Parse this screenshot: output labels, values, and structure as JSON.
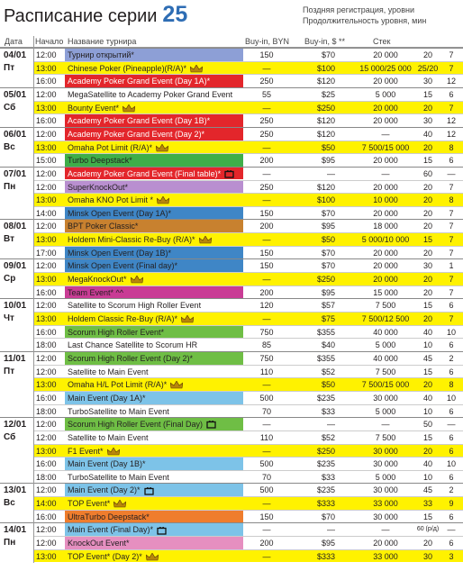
{
  "header": {
    "title": "Расписание серии",
    "number": "25",
    "note_late": "Поздняя регистрация, уровни",
    "note_duration": "Продолжительность уровня, мин"
  },
  "table": {
    "columns": [
      "Дата",
      "Начало",
      "Название турнира",
      "Buy-in, BYN",
      "Buy-in, $ **",
      "Стек"
    ],
    "days": [
      {
        "date": "04/01",
        "weekday": "Пт",
        "events": [
          {
            "time": "12:00",
            "name": "Турнир открытий*",
            "byn": "150",
            "usd": "$70",
            "stack": "20 000",
            "late": "20",
            "dur": "7",
            "color": "#8d9fd6"
          },
          {
            "time": "13:00",
            "name": "Chinese Poker (Pineapple)(R/A)*",
            "icon": "crown",
            "byn": "—",
            "usd": "$100",
            "stack": "15 000/25 000",
            "late": "25/20",
            "dur": "7",
            "color": "#fff200",
            "highlight": true
          },
          {
            "time": "16:00",
            "name": "Academy Poker Grand Event (Day 1A)*",
            "byn": "250",
            "usd": "$120",
            "stack": "20 000",
            "late": "30",
            "dur": "12",
            "color": "#e3262b",
            "text": "#fff"
          }
        ]
      },
      {
        "date": "05/01",
        "weekday": "Сб",
        "events": [
          {
            "time": "12:00",
            "name": "MegaSatellite to Academy Poker Grand Event",
            "byn": "55",
            "usd": "$25",
            "stack": "5 000",
            "late": "15",
            "dur": "6"
          },
          {
            "time": "13:00",
            "name": "Bounty Event*",
            "icon": "crown",
            "byn": "—",
            "usd": "$250",
            "stack": "20 000",
            "late": "20",
            "dur": "7",
            "color": "#fff200",
            "highlight": true
          },
          {
            "time": "16:00",
            "name": "Academy Poker Grand Event (Day 1B)*",
            "byn": "250",
            "usd": "$120",
            "stack": "20 000",
            "late": "30",
            "dur": "12",
            "color": "#e3262b",
            "text": "#fff"
          }
        ]
      },
      {
        "date": "06/01",
        "weekday": "Вс",
        "events": [
          {
            "time": "12:00",
            "name": "Academy Poker Grand Event (Day 2)*",
            "byn": "250",
            "usd": "$120",
            "stack": "—",
            "late": "40",
            "dur": "12",
            "color": "#e3262b",
            "text": "#fff"
          },
          {
            "time": "13:00",
            "name": "Omaha Pot Limit (R/A)*",
            "icon": "crown",
            "byn": "—",
            "usd": "$50",
            "stack": "7 500/15 000",
            "late": "20",
            "dur": "8",
            "color": "#fff200",
            "highlight": true
          },
          {
            "time": "15:00",
            "name": "Turbo Deepstack*",
            "byn": "200",
            "usd": "$95",
            "stack": "20 000",
            "late": "15",
            "dur": "6",
            "color": "#3fae49"
          }
        ]
      },
      {
        "date": "07/01",
        "weekday": "Пн",
        "events": [
          {
            "time": "12:00",
            "name": "Academy Poker Grand Event (Final table)*",
            "icon": "tv",
            "byn": "—",
            "usd": "—",
            "stack": "—",
            "late": "60",
            "dur": "—",
            "color": "#e3262b",
            "text": "#fff"
          },
          {
            "time": "12:00",
            "name": "SuperKnockOut*",
            "byn": "250",
            "usd": "$120",
            "stack": "20 000",
            "late": "20",
            "dur": "7",
            "color": "#b98fd0"
          },
          {
            "time": "13:00",
            "name": "Omaha KNO Pot Limit *",
            "icon": "crown",
            "byn": "—",
            "usd": "$100",
            "stack": "10 000",
            "late": "20",
            "dur": "8",
            "color": "#fff200",
            "highlight": true
          },
          {
            "time": "14:00",
            "name": "Minsk Open Event (Day 1A)*",
            "byn": "150",
            "usd": "$70",
            "stack": "20 000",
            "late": "20",
            "dur": "7",
            "color": "#3f86c6"
          }
        ]
      },
      {
        "date": "08/01",
        "weekday": "Вт",
        "events": [
          {
            "time": "12:00",
            "name": "BPT Poker Classic*",
            "byn": "200",
            "usd": "$95",
            "stack": "18 000",
            "late": "20",
            "dur": "7",
            "color": "#c8812f"
          },
          {
            "time": "13:00",
            "name": "Holdem Mini-Classic Re-Buy (R/A)*",
            "icon": "crown",
            "byn": "—",
            "usd": "$50",
            "stack": "5 000/10 000",
            "late": "15",
            "dur": "7",
            "color": "#fff200",
            "highlight": true
          },
          {
            "time": "17:00",
            "name": "Minsk Open Event (Day 1B)*",
            "byn": "150",
            "usd": "$70",
            "stack": "20 000",
            "late": "20",
            "dur": "7",
            "color": "#3f86c6"
          }
        ]
      },
      {
        "date": "09/01",
        "weekday": "Ср",
        "events": [
          {
            "time": "12:00",
            "name": "Minsk Open Event (Final day)*",
            "byn": "150",
            "usd": "$70",
            "stack": "20 000",
            "late": "30",
            "dur": "1",
            "color": "#3f86c6"
          },
          {
            "time": "13:00",
            "name": "MegaKnockOut*",
            "icon": "crown",
            "byn": "—",
            "usd": "$250",
            "stack": "20 000",
            "late": "20",
            "dur": "7",
            "color": "#fff200",
            "highlight": true
          },
          {
            "time": "16:00",
            "name": "Team Event* ^^",
            "byn": "200",
            "usd": "$95",
            "stack": "15 000",
            "late": "20",
            "dur": "7",
            "color": "#c93c95"
          }
        ]
      },
      {
        "date": "10/01",
        "weekday": "Чт",
        "events": [
          {
            "time": "12:00",
            "name": "Satellite to Scorum High Roller Event",
            "byn": "120",
            "usd": "$57",
            "stack": "7 500",
            "late": "15",
            "dur": "6"
          },
          {
            "time": "13:00",
            "name": "Holdem Classic Re-Buy (R/A)*",
            "icon": "crown",
            "byn": "—",
            "usd": "$75",
            "stack": "7 500/12 500",
            "late": "20",
            "dur": "7",
            "color": "#fff200",
            "highlight": true
          },
          {
            "time": "16:00",
            "name": "Scorum High Roller Event*",
            "byn": "750",
            "usd": "$355",
            "stack": "40 000",
            "late": "40",
            "dur": "10",
            "color": "#6fbe45"
          },
          {
            "time": "18:00",
            "name": "Last Chance Satellite to Scorum HR",
            "byn": "85",
            "usd": "$40",
            "stack": "5 000",
            "late": "10",
            "dur": "6"
          }
        ]
      },
      {
        "date": "11/01",
        "weekday": "Пт",
        "events": [
          {
            "time": "12:00",
            "name": "Scorum High Roller Event (Day 2)*",
            "byn": "750",
            "usd": "$355",
            "stack": "40 000",
            "late": "45",
            "dur": "2",
            "color": "#6fbe45"
          },
          {
            "time": "12:00",
            "name": "Satellite to Main Event",
            "byn": "110",
            "usd": "$52",
            "stack": "7 500",
            "late": "15",
            "dur": "6"
          },
          {
            "time": "13:00",
            "name": "Omaha H/L Pot Limit (R/A)*",
            "icon": "crown",
            "byn": "—",
            "usd": "$50",
            "stack": "7 500/15 000",
            "late": "20",
            "dur": "8",
            "color": "#fff200",
            "highlight": true
          },
          {
            "time": "16:00",
            "name": "Main Event (Day 1A)*",
            "byn": "500",
            "usd": "$235",
            "stack": "30 000",
            "late": "40",
            "dur": "10",
            "color": "#7dc3e8"
          },
          {
            "time": "18:00",
            "name": "TurboSatellite to Main Event",
            "byn": "70",
            "usd": "$33",
            "stack": "5 000",
            "late": "10",
            "dur": "6"
          }
        ]
      },
      {
        "date": "12/01",
        "weekday": "Сб",
        "events": [
          {
            "time": "12:00",
            "name": "Scorum High Roller Event (Final Day)",
            "icon": "tv",
            "byn": "—",
            "usd": "—",
            "stack": "—",
            "late": "50",
            "dur": "—",
            "color": "#6fbe45"
          },
          {
            "time": "12:00",
            "name": "Satellite to Main Event",
            "byn": "110",
            "usd": "$52",
            "stack": "7 500",
            "late": "15",
            "dur": "6"
          },
          {
            "time": "13:00",
            "name": "F1 Event*",
            "icon": "crown",
            "byn": "—",
            "usd": "$250",
            "stack": "30 000",
            "late": "20",
            "dur": "6",
            "color": "#fff200",
            "highlight": true
          },
          {
            "time": "16:00",
            "name": "Main Event (Day 1B)*",
            "byn": "500",
            "usd": "$235",
            "stack": "30 000",
            "late": "40",
            "dur": "10",
            "color": "#7dc3e8"
          },
          {
            "time": "18:00",
            "name": "TurboSatellite to Main Event",
            "byn": "70",
            "usd": "$33",
            "stack": "5 000",
            "late": "10",
            "dur": "6"
          }
        ]
      },
      {
        "date": "13/01",
        "weekday": "Вс",
        "events": [
          {
            "time": "12:00",
            "name": "Main Event (Day 2)*",
            "icon": "tv",
            "byn": "500",
            "usd": "$235",
            "stack": "30 000",
            "late": "45",
            "dur": "2",
            "color": "#7dc3e8"
          },
          {
            "time": "14:00",
            "name": "TOP Event*",
            "icon": "crown",
            "byn": "—",
            "usd": "$333",
            "stack": "33 000",
            "late": "33",
            "dur": "9",
            "color": "#fff200",
            "highlight": true
          },
          {
            "time": "16:00",
            "name": "UltraTurbo Deepstack*",
            "byn": "150",
            "usd": "$70",
            "stack": "30 000",
            "late": "15",
            "dur": "6",
            "color": "#ef7d2d"
          }
        ]
      },
      {
        "date": "14/01",
        "weekday": "Пн",
        "events": [
          {
            "time": "12:00",
            "name": "Main Event (Final Day)*",
            "icon": "tv",
            "byn": "—",
            "usd": "—",
            "stack": "—",
            "late": "60 (р/д)",
            "dur": "—",
            "color": "#7dc3e8"
          },
          {
            "time": "12:00",
            "name": "KnockOut Event*",
            "byn": "200",
            "usd": "$95",
            "stack": "20 000",
            "late": "20",
            "dur": "6",
            "color": "#e68fc0"
          },
          {
            "time": "13:00",
            "name": "TOP Event* (Day 2)*",
            "icon": "crown",
            "byn": "—",
            "usd": "$333",
            "stack": "33 000",
            "late": "30",
            "dur": "3",
            "color": "#fff200",
            "highlight": true
          }
        ]
      }
    ]
  }
}
